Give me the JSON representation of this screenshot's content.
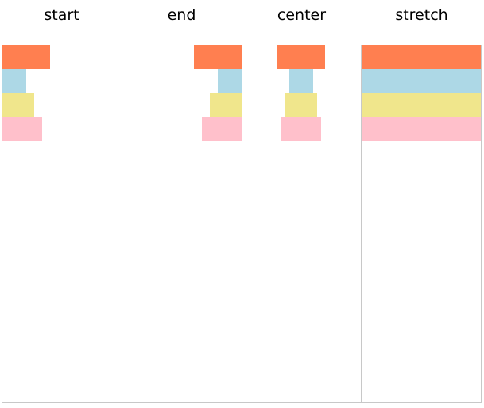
{
  "columns": [
    {
      "id": "start",
      "title": "start"
    },
    {
      "id": "end",
      "title": "end"
    },
    {
      "id": "center",
      "title": "center"
    },
    {
      "id": "stretch",
      "title": "stretch"
    }
  ],
  "box_colors": [
    "#ff7f50",
    "#add8e6",
    "#f0e68c",
    "#ffc0cb"
  ]
}
